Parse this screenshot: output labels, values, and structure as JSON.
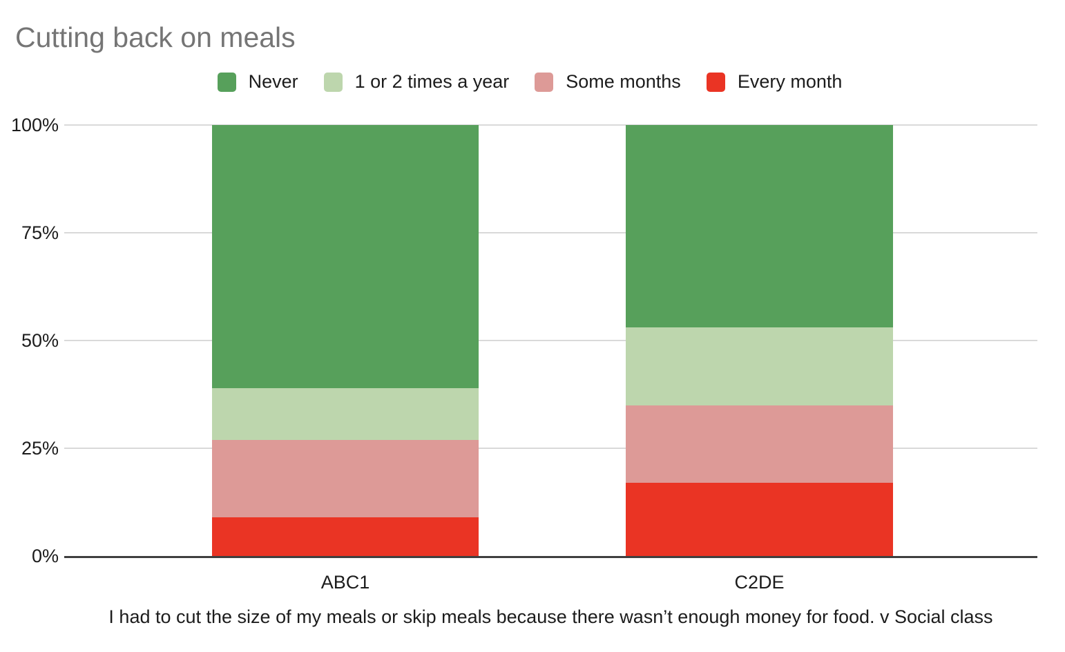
{
  "title": "Cutting back on meals",
  "colors": {
    "title_text": "#757575",
    "axis_text": "#1c1c1c",
    "gridline": "#d9d9d9",
    "axis_line": "#3f3f3f",
    "background": "#ffffff",
    "never_green": "#57a05b",
    "once_twice_light_green": "#bdd6ad",
    "some_months_pink": "#dd9a97",
    "every_month_red": "#ea3424"
  },
  "chart_data": {
    "type": "bar",
    "stacked": true,
    "title": "Cutting back on meals",
    "categories": [
      "ABC1",
      "C2DE"
    ],
    "series": [
      {
        "name": "Never",
        "color": "#57a05b",
        "values": [
          61,
          47
        ]
      },
      {
        "name": "1 or 2 times a year",
        "color": "#bdd6ad",
        "values": [
          12,
          18
        ]
      },
      {
        "name": "Some months",
        "color": "#dd9a97",
        "values": [
          18,
          18
        ]
      },
      {
        "name": "Every month",
        "color": "#ea3424",
        "values": [
          9,
          17
        ]
      }
    ],
    "stack_order_bottom_to_top": [
      "Every month",
      "Some months",
      "1 or 2 times a year",
      "Never"
    ],
    "xlabel": "I had to cut the size of my meals or skip meals because there wasn’t enough money for food. v Social class",
    "ylabel": "",
    "ylim": [
      0,
      100
    ],
    "ytick_values": [
      0,
      25,
      50,
      75,
      100
    ],
    "ytick_labels": [
      "0%",
      "25%",
      "50%",
      "75%",
      "100%"
    ],
    "grid": true,
    "legend_position": "top"
  }
}
